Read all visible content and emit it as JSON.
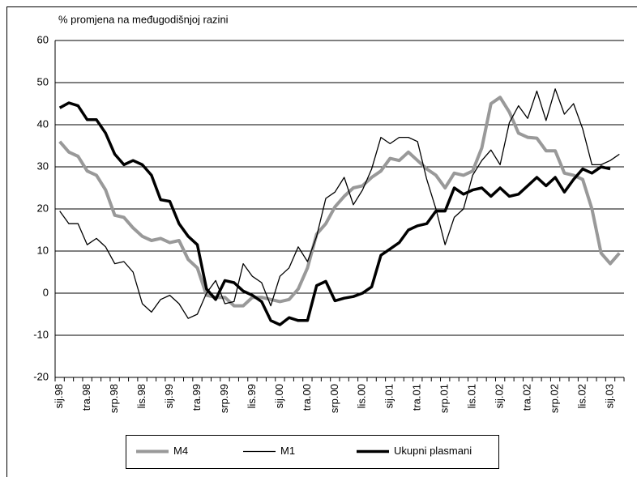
{
  "chart_data": {
    "type": "line",
    "title": "% promjena na međugodišnjoj razini",
    "categories": [
      "sij.98",
      null,
      null,
      "tra.98",
      null,
      null,
      "srp.98",
      null,
      null,
      "lis.98",
      null,
      null,
      "sij.99",
      null,
      null,
      "tra.99",
      null,
      null,
      "srp.99",
      null,
      null,
      "lis.99",
      null,
      null,
      "sij.00",
      null,
      null,
      "tra.00",
      null,
      null,
      "srp.00",
      null,
      null,
      "lis.00",
      null,
      null,
      "sij.01",
      null,
      null,
      "tra.01",
      null,
      null,
      "srp.01",
      null,
      null,
      "lis.01",
      null,
      null,
      "sij.02",
      null,
      null,
      "tra.02",
      null,
      null,
      "srp.02",
      null,
      null,
      "lis.02",
      null,
      null,
      "sij.03",
      null
    ],
    "series": [
      {
        "name": "M4",
        "color": "#999999",
        "values": [
          36,
          33.5,
          32.5,
          29,
          28,
          24.5,
          18.5,
          18,
          15.5,
          13.5,
          12.5,
          13,
          12,
          12.5,
          8,
          6,
          -0.5,
          -1,
          -1,
          -3,
          -3,
          -1,
          -1,
          -1.5,
          -2,
          -1.5,
          1,
          6,
          14,
          16.5,
          20.5,
          23,
          25,
          25.5,
          27.5,
          29,
          32,
          31.5,
          33.5,
          31.5,
          29.5,
          28,
          25,
          28.5,
          28,
          29,
          34.5,
          45,
          46.5,
          43,
          38,
          37,
          36.8,
          33.8,
          33.8,
          28.5,
          28,
          27,
          20,
          9.5,
          7,
          9.5
        ]
      },
      {
        "name": "M1",
        "color": "#000000",
        "values": [
          19.5,
          16.5,
          16.5,
          11.5,
          13,
          11,
          7,
          7.5,
          5,
          -2.5,
          -4.5,
          -1.5,
          -0.5,
          -2.5,
          -6,
          -5,
          0,
          3,
          -2.5,
          -2,
          7,
          4,
          2.5,
          -3,
          4,
          6,
          11,
          7.5,
          13.5,
          22.5,
          24,
          27.5,
          21,
          24.5,
          29.5,
          37,
          35.5,
          37,
          37,
          36,
          27,
          20,
          11.5,
          18,
          20,
          28,
          31.5,
          34,
          30.5,
          40.5,
          44.5,
          41.5,
          48,
          41,
          48.5,
          42.5,
          45,
          39,
          30.5,
          30.5,
          31.5,
          33
        ]
      },
      {
        "name": "Ukupni plasmani",
        "color": "#000000",
        "values": [
          44,
          45.2,
          44.5,
          41.2,
          41.2,
          38,
          33,
          30.5,
          31.5,
          30.5,
          28,
          22.2,
          21.8,
          16.5,
          13.5,
          11.5,
          1,
          -1.5,
          3,
          2.5,
          0.5,
          -0.5,
          -2,
          -6.5,
          -7.5,
          -5.8,
          -6.5,
          -6.5,
          1.8,
          2.8,
          -1.8,
          -1.2,
          -0.8,
          0,
          1.5,
          9,
          10.5,
          12,
          15,
          16,
          16.5,
          19.5,
          19.5,
          25,
          23.5,
          24.5,
          25,
          23,
          25,
          23,
          23.5,
          25.5,
          27.5,
          25.5,
          27.5,
          24,
          27,
          29.5,
          28.5,
          30,
          29.5,
          null
        ]
      }
    ],
    "ylim": [
      -20,
      60
    ],
    "yticks": [
      -20,
      -10,
      0,
      10,
      20,
      30,
      40,
      50,
      60
    ],
    "grid": true,
    "legend": "bottom"
  }
}
